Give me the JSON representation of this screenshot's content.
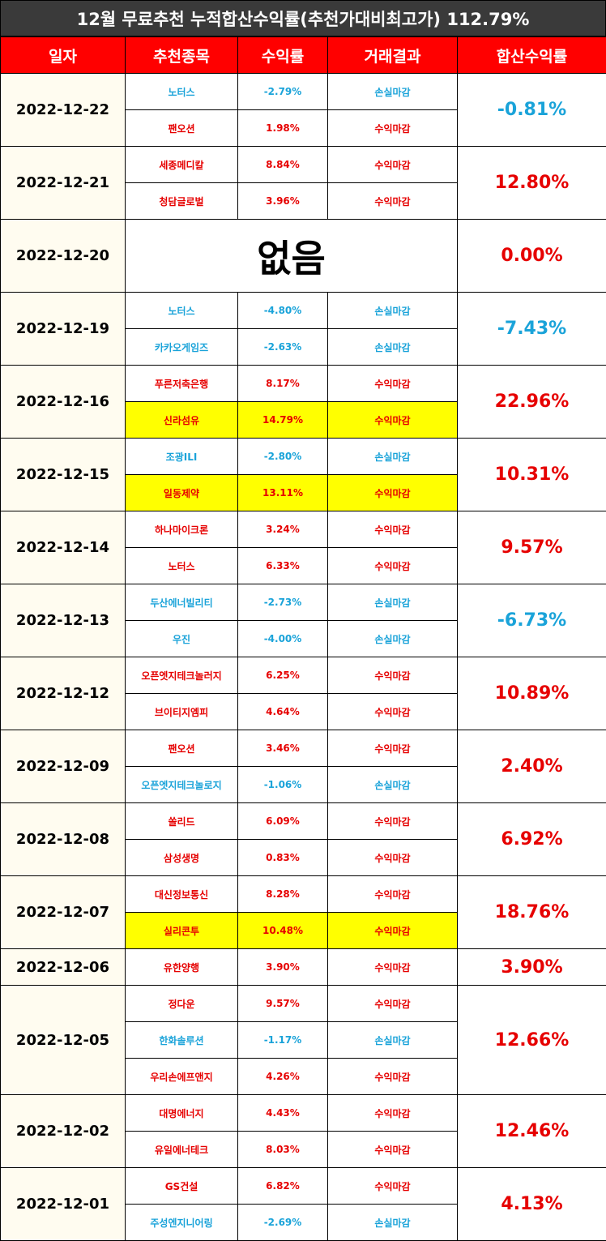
{
  "title": "12월 무료추천 누적합산수익률(추천가대비최고가) 112.79%",
  "headers": [
    "일자",
    "추천종목",
    "수익률",
    "거래결과",
    "합산수익률"
  ],
  "rows": [
    {
      "date": "2022-12-22",
      "total": "-0.81%",
      "dir": "dn",
      "picks": [
        {
          "name": "노터스",
          "ret": "-2.79%",
          "result": "손실마감",
          "dir": "dn",
          "hl": false
        },
        {
          "name": "팬오션",
          "ret": "1.98%",
          "result": "수익마감",
          "dir": "up",
          "hl": false
        }
      ]
    },
    {
      "date": "2022-12-21",
      "total": "12.80%",
      "dir": "up",
      "picks": [
        {
          "name": "세종메디칼",
          "ret": "8.84%",
          "result": "수익마감",
          "dir": "up",
          "hl": false
        },
        {
          "name": "청담글로벌",
          "ret": "3.96%",
          "result": "수익마감",
          "dir": "up",
          "hl": false
        }
      ]
    },
    {
      "date": "2022-12-20",
      "total": "0.00%",
      "dir": "up",
      "none": "없음",
      "picks": []
    },
    {
      "date": "2022-12-19",
      "total": "-7.43%",
      "dir": "dn",
      "picks": [
        {
          "name": "노터스",
          "ret": "-4.80%",
          "result": "손실마감",
          "dir": "dn",
          "hl": false
        },
        {
          "name": "카카오게임즈",
          "ret": "-2.63%",
          "result": "손실마감",
          "dir": "dn",
          "hl": false
        }
      ]
    },
    {
      "date": "2022-12-16",
      "total": "22.96%",
      "dir": "up",
      "picks": [
        {
          "name": "푸른저축은행",
          "ret": "8.17%",
          "result": "수익마감",
          "dir": "up",
          "hl": false
        },
        {
          "name": "신라섬유",
          "ret": "14.79%",
          "result": "수익마감",
          "dir": "up",
          "hl": true
        }
      ]
    },
    {
      "date": "2022-12-15",
      "total": "10.31%",
      "dir": "up",
      "picks": [
        {
          "name": "조광ILI",
          "ret": "-2.80%",
          "result": "손실마감",
          "dir": "dn",
          "hl": false
        },
        {
          "name": "일동제약",
          "ret": "13.11%",
          "result": "수익마감",
          "dir": "up",
          "hl": true
        }
      ]
    },
    {
      "date": "2022-12-14",
      "total": "9.57%",
      "dir": "up",
      "picks": [
        {
          "name": "하나마이크론",
          "ret": "3.24%",
          "result": "수익마감",
          "dir": "up",
          "hl": false
        },
        {
          "name": "노터스",
          "ret": "6.33%",
          "result": "수익마감",
          "dir": "up",
          "hl": false
        }
      ]
    },
    {
      "date": "2022-12-13",
      "total": "-6.73%",
      "dir": "dn",
      "picks": [
        {
          "name": "두산에너빌리티",
          "ret": "-2.73%",
          "result": "손실마감",
          "dir": "dn",
          "hl": false
        },
        {
          "name": "우진",
          "ret": "-4.00%",
          "result": "손실마감",
          "dir": "dn",
          "hl": false
        }
      ]
    },
    {
      "date": "2022-12-12",
      "total": "10.89%",
      "dir": "up",
      "picks": [
        {
          "name": "오픈엣지테크놀러지",
          "ret": "6.25%",
          "result": "수익마감",
          "dir": "up",
          "hl": false
        },
        {
          "name": "브이티지엠피",
          "ret": "4.64%",
          "result": "수익마감",
          "dir": "up",
          "hl": false
        }
      ]
    },
    {
      "date": "2022-12-09",
      "total": "2.40%",
      "dir": "up",
      "picks": [
        {
          "name": "팬오션",
          "ret": "3.46%",
          "result": "수익마감",
          "dir": "up",
          "hl": false
        },
        {
          "name": "오픈엣지테크놀로지",
          "ret": "-1.06%",
          "result": "손실마감",
          "dir": "dn",
          "hl": false
        }
      ]
    },
    {
      "date": "2022-12-08",
      "total": "6.92%",
      "dir": "up",
      "picks": [
        {
          "name": "쏠리드",
          "ret": "6.09%",
          "result": "수익마감",
          "dir": "up",
          "hl": false
        },
        {
          "name": "삼성생명",
          "ret": "0.83%",
          "result": "수익마감",
          "dir": "up",
          "hl": false
        }
      ]
    },
    {
      "date": "2022-12-07",
      "total": "18.76%",
      "dir": "up",
      "picks": [
        {
          "name": "대신정보통신",
          "ret": "8.28%",
          "result": "수익마감",
          "dir": "up",
          "hl": false
        },
        {
          "name": "실리콘투",
          "ret": "10.48%",
          "result": "수익마감",
          "dir": "up",
          "hl": true
        }
      ]
    },
    {
      "date": "2022-12-06",
      "total": "3.90%",
      "dir": "up",
      "picks": [
        {
          "name": "유한양행",
          "ret": "3.90%",
          "result": "수익마감",
          "dir": "up",
          "hl": false
        }
      ]
    },
    {
      "date": "2022-12-05",
      "total": "12.66%",
      "dir": "up",
      "picks": [
        {
          "name": "정다운",
          "ret": "9.57%",
          "result": "수익마감",
          "dir": "up",
          "hl": false
        },
        {
          "name": "한화솔루션",
          "ret": "-1.17%",
          "result": "손실마감",
          "dir": "dn",
          "hl": false
        },
        {
          "name": "우리손에프앤지",
          "ret": "4.26%",
          "result": "수익마감",
          "dir": "up",
          "hl": false
        }
      ]
    },
    {
      "date": "2022-12-02",
      "total": "12.46%",
      "dir": "up",
      "picks": [
        {
          "name": "대명에너지",
          "ret": "4.43%",
          "result": "수익마감",
          "dir": "up",
          "hl": false
        },
        {
          "name": "유일에너테크",
          "ret": "8.03%",
          "result": "수익마감",
          "dir": "up",
          "hl": false
        }
      ]
    },
    {
      "date": "2022-12-01",
      "total": "4.13%",
      "dir": "up",
      "picks": [
        {
          "name": "GS건설",
          "ret": "6.82%",
          "result": "수익마감",
          "dir": "up",
          "hl": false
        },
        {
          "name": "주성엔지니어링",
          "ret": "-2.69%",
          "result": "손실마감",
          "dir": "dn",
          "hl": false
        }
      ]
    }
  ]
}
